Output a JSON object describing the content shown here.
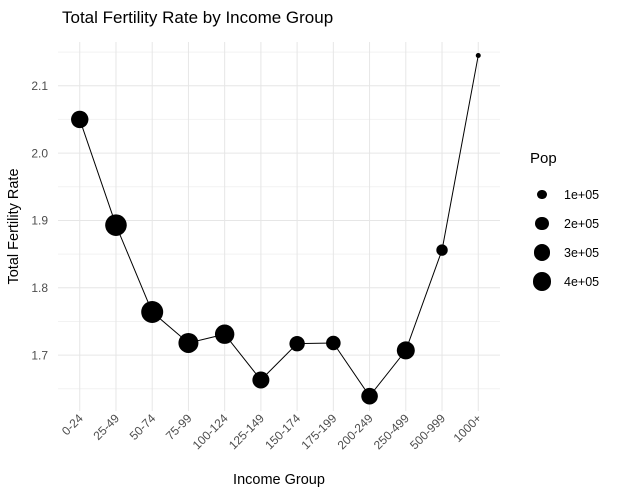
{
  "chart_data": {
    "type": "line",
    "title": "Total Fertility Rate by Income Group",
    "xlabel": "Income Group",
    "ylabel": "Total Fertility Rate",
    "categories": [
      "0-24",
      "25-49",
      "50-74",
      "75-99",
      "100-124",
      "125-149",
      "150-174",
      "175-199",
      "200-249",
      "250-499",
      "500-999",
      "1000+"
    ],
    "series": [
      {
        "name": "Total Fertility Rate",
        "values": [
          2.05,
          1.893,
          1.764,
          1.718,
          1.731,
          1.663,
          1.717,
          1.718,
          1.639,
          1.707,
          1.856,
          2.145
        ]
      }
    ],
    "point_sizes": {
      "variable": "Pop",
      "radius_px": [
        8.7,
        10.8,
        11.0,
        10.0,
        9.7,
        8.5,
        7.7,
        7.3,
        8.3,
        9.0,
        5.7,
        2.5
      ],
      "pop_approx": [
        350000,
        540000,
        560000,
        460000,
        430000,
        330000,
        270000,
        250000,
        320000,
        370000,
        150000,
        27000
      ]
    },
    "yticks": [
      1.7,
      1.8,
      1.9,
      2.0,
      2.1
    ],
    "ytick_labels": [
      "1.7",
      "1.8",
      "1.9",
      "2.0",
      "2.1"
    ],
    "yminor": [
      1.65,
      1.75,
      1.85,
      1.95,
      2.05,
      2.15
    ],
    "ylim": [
      1.617,
      2.165
    ],
    "grid": true,
    "legend": {
      "title": "Pop",
      "position": "right",
      "entries": [
        {
          "label": "1e+05",
          "radius_px": 4.7
        },
        {
          "label": "2e+05",
          "radius_px": 6.6
        },
        {
          "label": "3e+05",
          "radius_px": 8.1
        },
        {
          "label": "4e+05",
          "radius_px": 9.3
        }
      ]
    },
    "colors": {
      "point": "#000000",
      "line": "#000000",
      "grid_major": "#e6e6e6",
      "grid_minor": "#f2f2f2",
      "axis_text": "#4d4d4d",
      "axis_title": "#000000",
      "title": "#000000",
      "background": "#ffffff"
    }
  }
}
